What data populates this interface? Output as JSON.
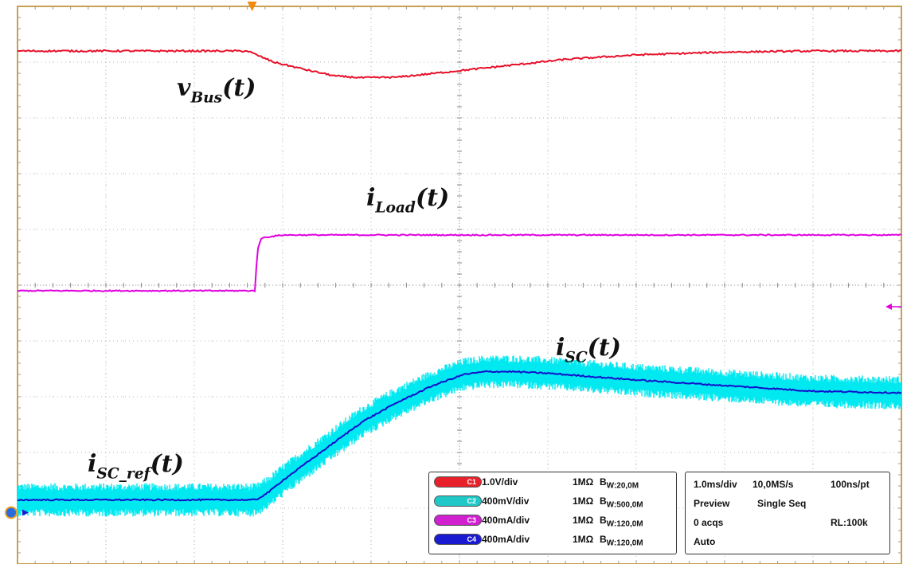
{
  "chart_data": {
    "type": "line",
    "grid": true,
    "divisions": {
      "x": 10,
      "y": 10
    },
    "colors": {
      "grid": "#b8b8b8",
      "axis": "#c8a050",
      "v_bus": "#e8102a",
      "i_load": "#e000e0",
      "i_sc_band": "#00e8f0",
      "i_sc": "#1010cc",
      "trigger": "#f08a10"
    },
    "labels": {
      "v_bus": {
        "base": "v",
        "sub": "Bus",
        "arg": "(t)"
      },
      "i_load": {
        "base": "i",
        "sub": "Load",
        "arg": "(t)"
      },
      "i_sc": {
        "base": "i",
        "sub": "SC",
        "arg": "(t)"
      },
      "i_sc_ref": {
        "base": "i",
        "sub": "SC_ref",
        "arg": "(t)"
      }
    },
    "series": [
      {
        "id": "v_bus",
        "x": [
          0,
          2.6,
          2.9,
          3.3,
          3.6,
          3.9,
          4.3,
          4.9,
          5.5,
          6.2,
          7.0,
          8.0,
          9.0,
          10.0
        ],
        "y": [
          9.2,
          9.2,
          9.0,
          8.85,
          8.75,
          8.72,
          8.73,
          8.83,
          8.93,
          9.05,
          9.13,
          9.18,
          9.2,
          9.2
        ]
      },
      {
        "id": "i_load",
        "x": [
          0,
          2.69,
          2.71,
          2.76,
          3.0,
          6.0,
          10.0
        ],
        "y": [
          4.9,
          4.9,
          5.6,
          5.85,
          5.9,
          5.9,
          5.9
        ]
      },
      {
        "id": "i_sc",
        "x": [
          0,
          2.1,
          2.7,
          2.85,
          3.0,
          3.3,
          3.6,
          3.9,
          4.3,
          4.7,
          5.05,
          5.3,
          5.6,
          6.0,
          7.0,
          8.0,
          9.0,
          10.0
        ],
        "y": [
          1.15,
          1.15,
          1.15,
          1.3,
          1.5,
          1.85,
          2.2,
          2.55,
          2.9,
          3.2,
          3.4,
          3.45,
          3.45,
          3.42,
          3.3,
          3.2,
          3.1,
          3.07
        ]
      }
    ],
    "i_sc_noise_band": 0.3
  },
  "channels": [
    {
      "name": "C1",
      "scale": "1.0V/div",
      "impedance": "1MΩ",
      "bw": "W:20,0M",
      "color": "#e8202a"
    },
    {
      "name": "C2",
      "scale": "400mV/div",
      "impedance": "1MΩ",
      "bw": "W:500,0M",
      "color": "#20c8c8"
    },
    {
      "name": "C3",
      "scale": "400mA/div",
      "impedance": "1MΩ",
      "bw": "W:120,0M",
      "color": "#d020d0"
    },
    {
      "name": "C4",
      "scale": "400mA/div",
      "impedance": "1MΩ",
      "bw": "W:120,0M",
      "color": "#1a1ad0"
    }
  ],
  "bw_prefix": "B",
  "acquisition": {
    "timebase": "1.0ms/div",
    "sample_rate": "10,0MS/s",
    "resolution": "100ns/pt",
    "mode": "Preview",
    "sequence": "Single Seq",
    "acqs": "0 acqs",
    "record_length": "RL:100k",
    "trigger_mode": "Auto"
  }
}
